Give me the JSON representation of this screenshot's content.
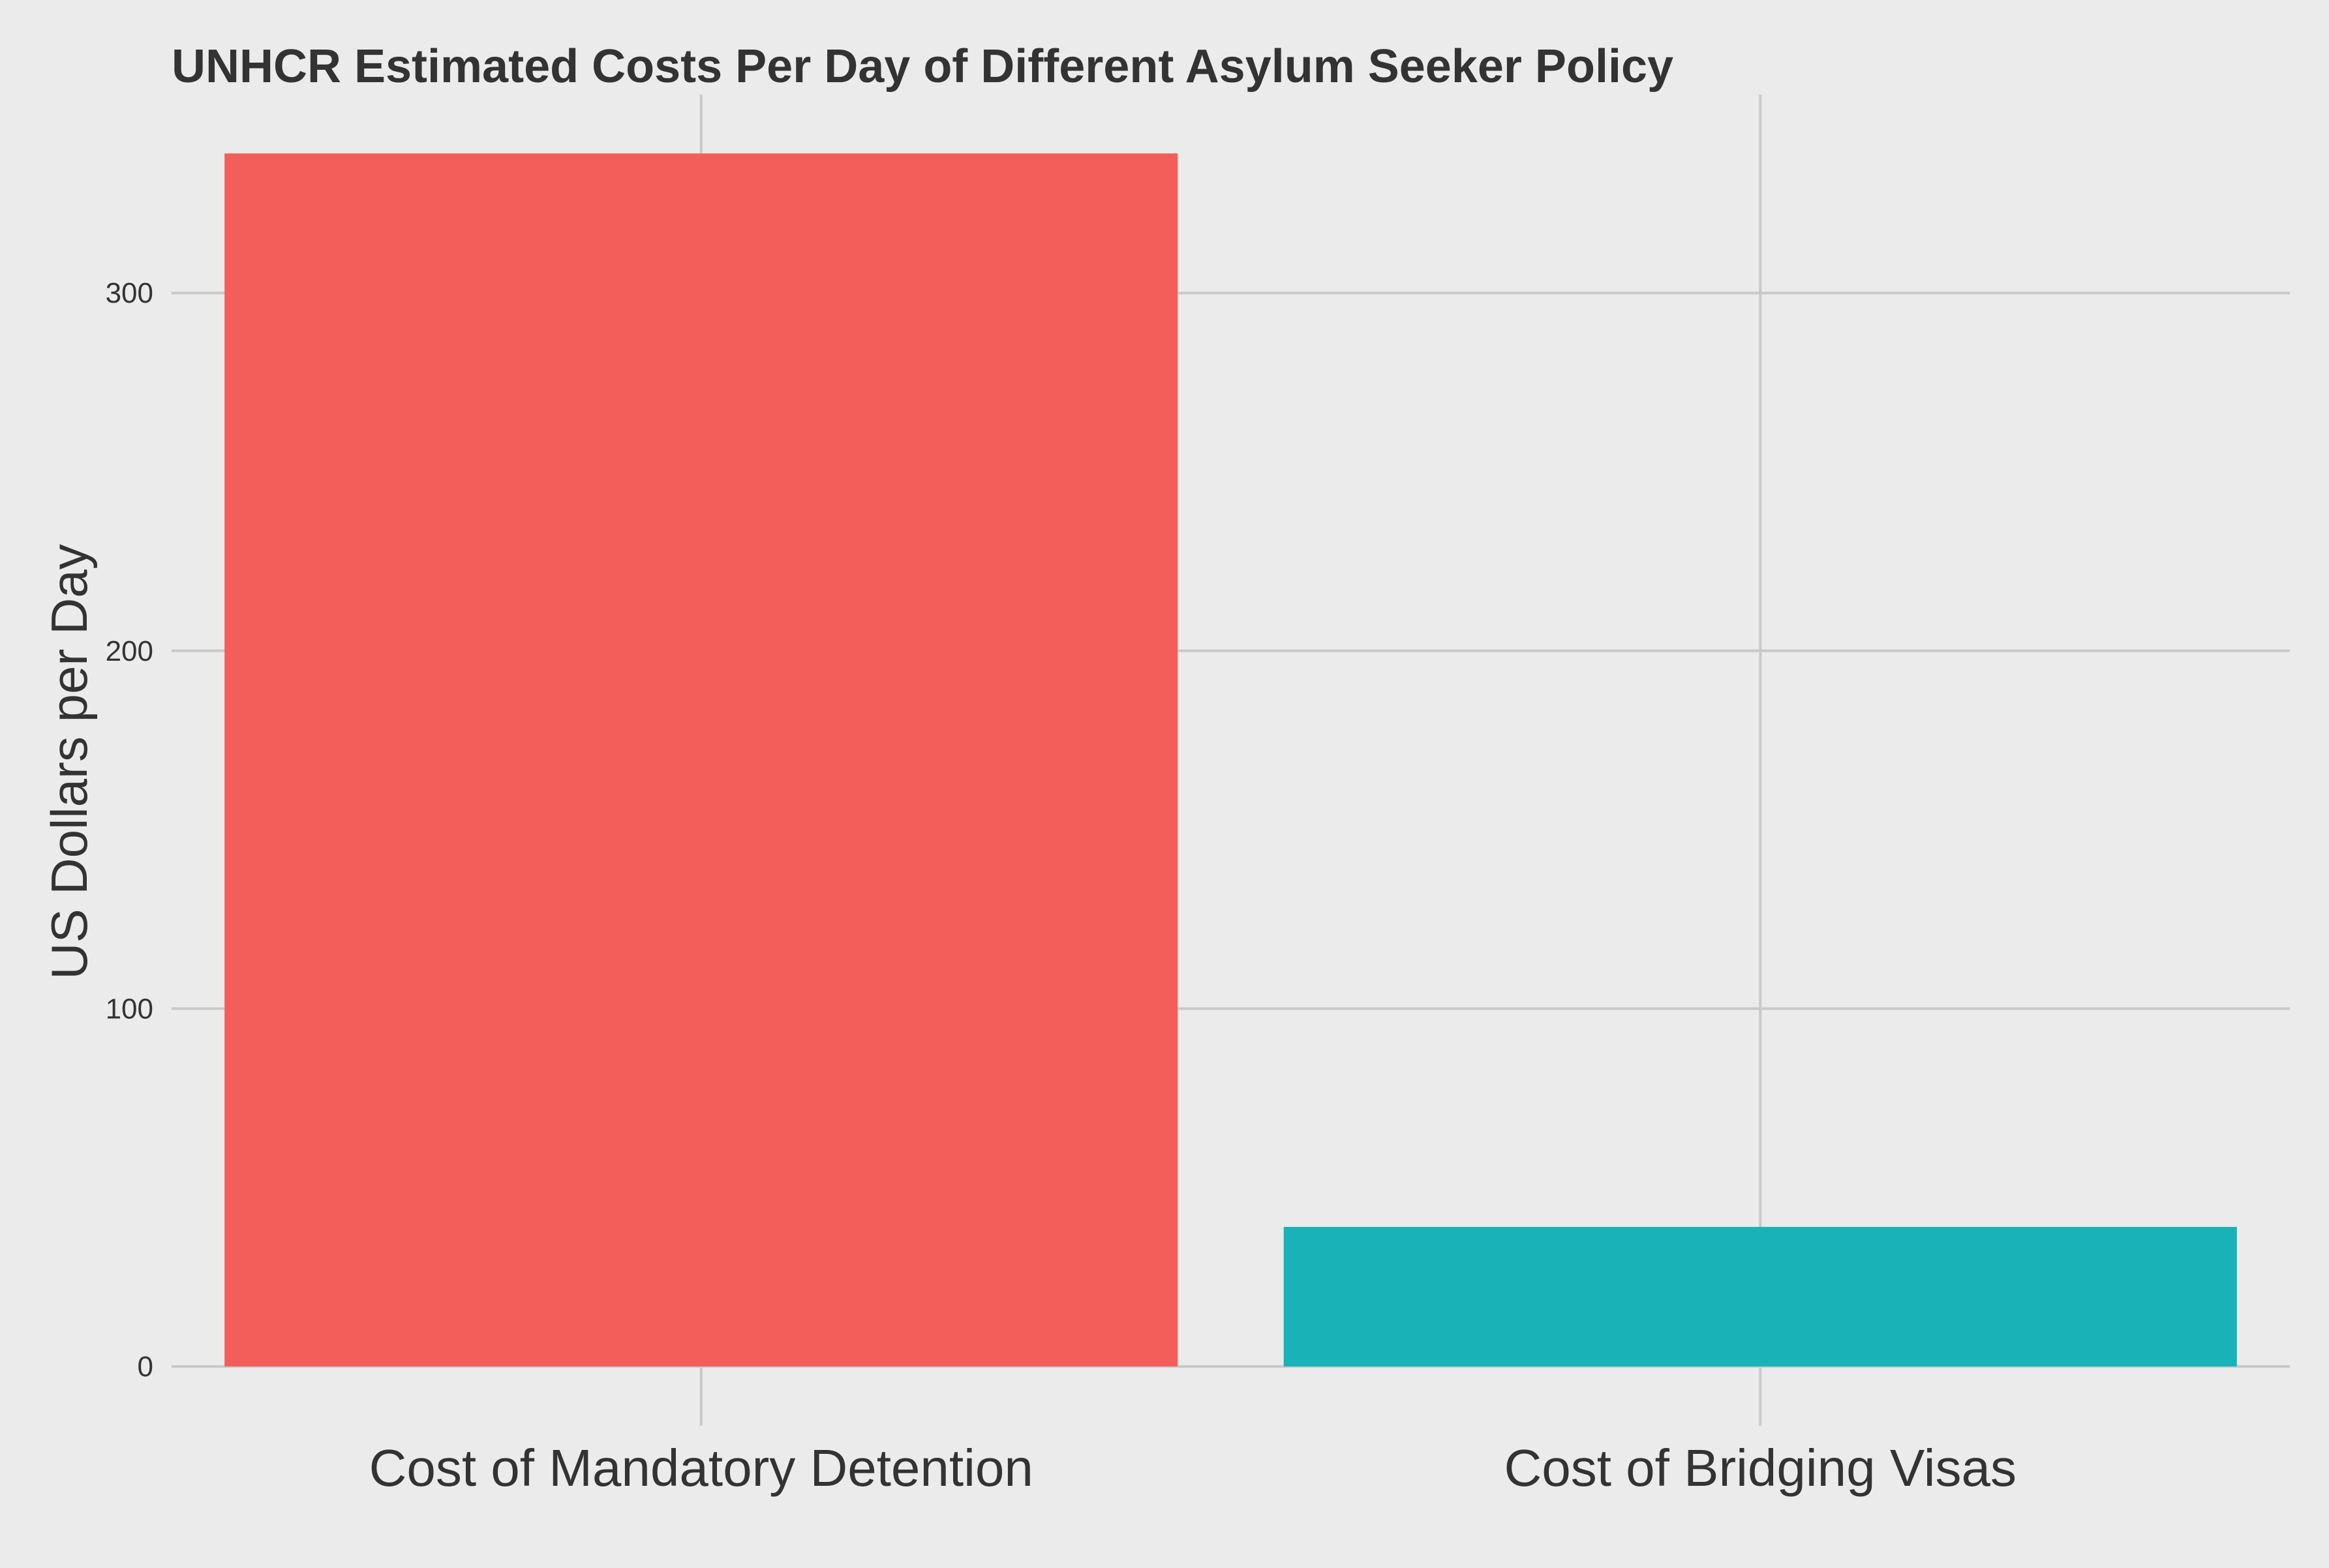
{
  "colors": {
    "background": "#ebebeb",
    "grid": "#c9c9c9",
    "text": "#333333"
  },
  "chart_data": {
    "type": "bar",
    "title": "UNHCR Estimated Costs Per Day of Different Asylum Seeker Policy",
    "xlabel": "",
    "ylabel": "US Dollars per Day",
    "categories": [
      "Cost of Mandatory Detention",
      "Cost of Bridging Visas"
    ],
    "values": [
      339,
      39
    ],
    "bar_colors": [
      "#f35e5a",
      "#19b3b7"
    ],
    "ylim": [
      -15,
      355
    ],
    "yticks": [
      0,
      100,
      200,
      300
    ],
    "ytick_labels": [
      "0",
      "100",
      "200",
      "300"
    ],
    "grid": true,
    "legend": "none"
  }
}
